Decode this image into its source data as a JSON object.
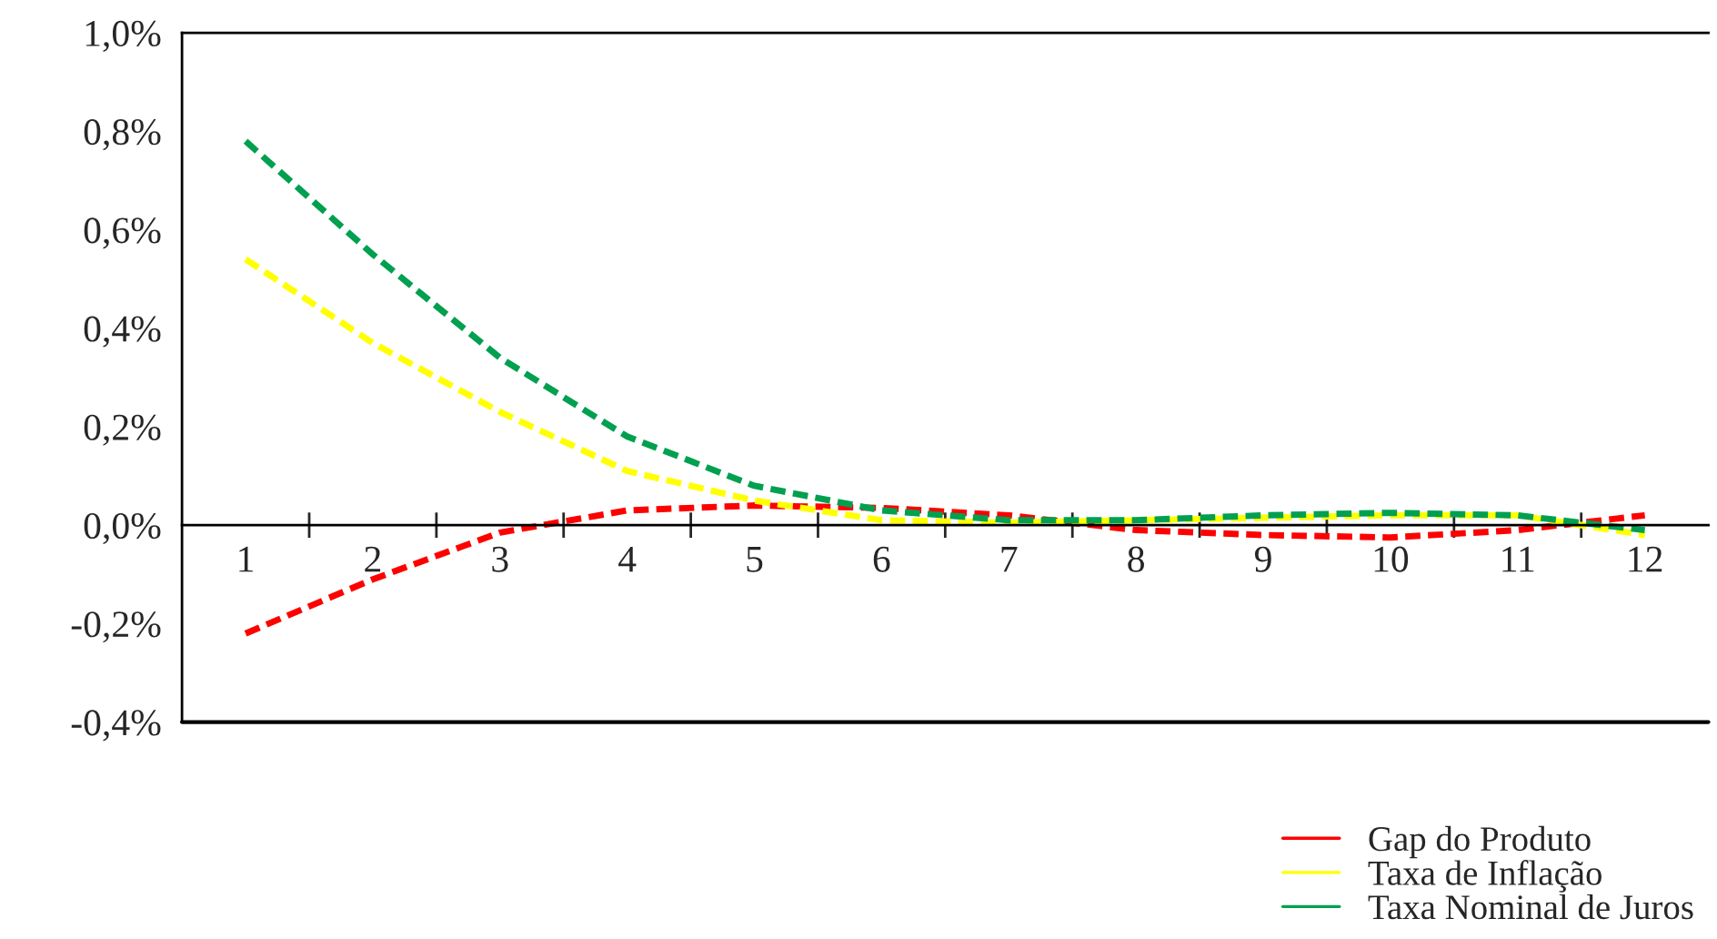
{
  "chart_data": {
    "type": "line",
    "categories": [
      "1",
      "2",
      "3",
      "4",
      "5",
      "6",
      "7",
      "8",
      "9",
      "10",
      "11",
      "12"
    ],
    "series": [
      {
        "name": "Gap do Produto",
        "color": "#ff0000",
        "values": [
          -0.22,
          -0.11,
          -0.015,
          0.03,
          0.04,
          0.035,
          0.02,
          -0.01,
          -0.02,
          -0.025,
          -0.01,
          0.02
        ]
      },
      {
        "name": "Taxa de Inflação",
        "color": "#ffff00",
        "values": [
          0.54,
          0.37,
          0.23,
          0.11,
          0.05,
          0.01,
          0.005,
          0.01,
          0.015,
          0.02,
          0.02,
          -0.02
        ]
      },
      {
        "name": "Taxa Nominal de Juros",
        "color": "#00a050",
        "values": [
          0.78,
          0.55,
          0.34,
          0.18,
          0.08,
          0.03,
          0.01,
          0.01,
          0.02,
          0.025,
          0.02,
          -0.01
        ]
      }
    ],
    "ylim": [
      -0.4,
      1.0
    ],
    "yticks": [
      {
        "value": -0.4,
        "label": "-0,4%"
      },
      {
        "value": -0.2,
        "label": "-0,2%"
      },
      {
        "value": 0,
        "label": "0,0%"
      },
      {
        "value": 0.2,
        "label": "0,2%"
      },
      {
        "value": 0.4,
        "label": "0,4%"
      },
      {
        "value": 0.6,
        "label": "0,6%"
      },
      {
        "value": 0.8,
        "label": "0,8%"
      },
      {
        "value": 1.0,
        "label": "1,0%"
      }
    ],
    "line_style": "dashed",
    "marker": "none",
    "grid": false,
    "legend": "bottom right"
  }
}
